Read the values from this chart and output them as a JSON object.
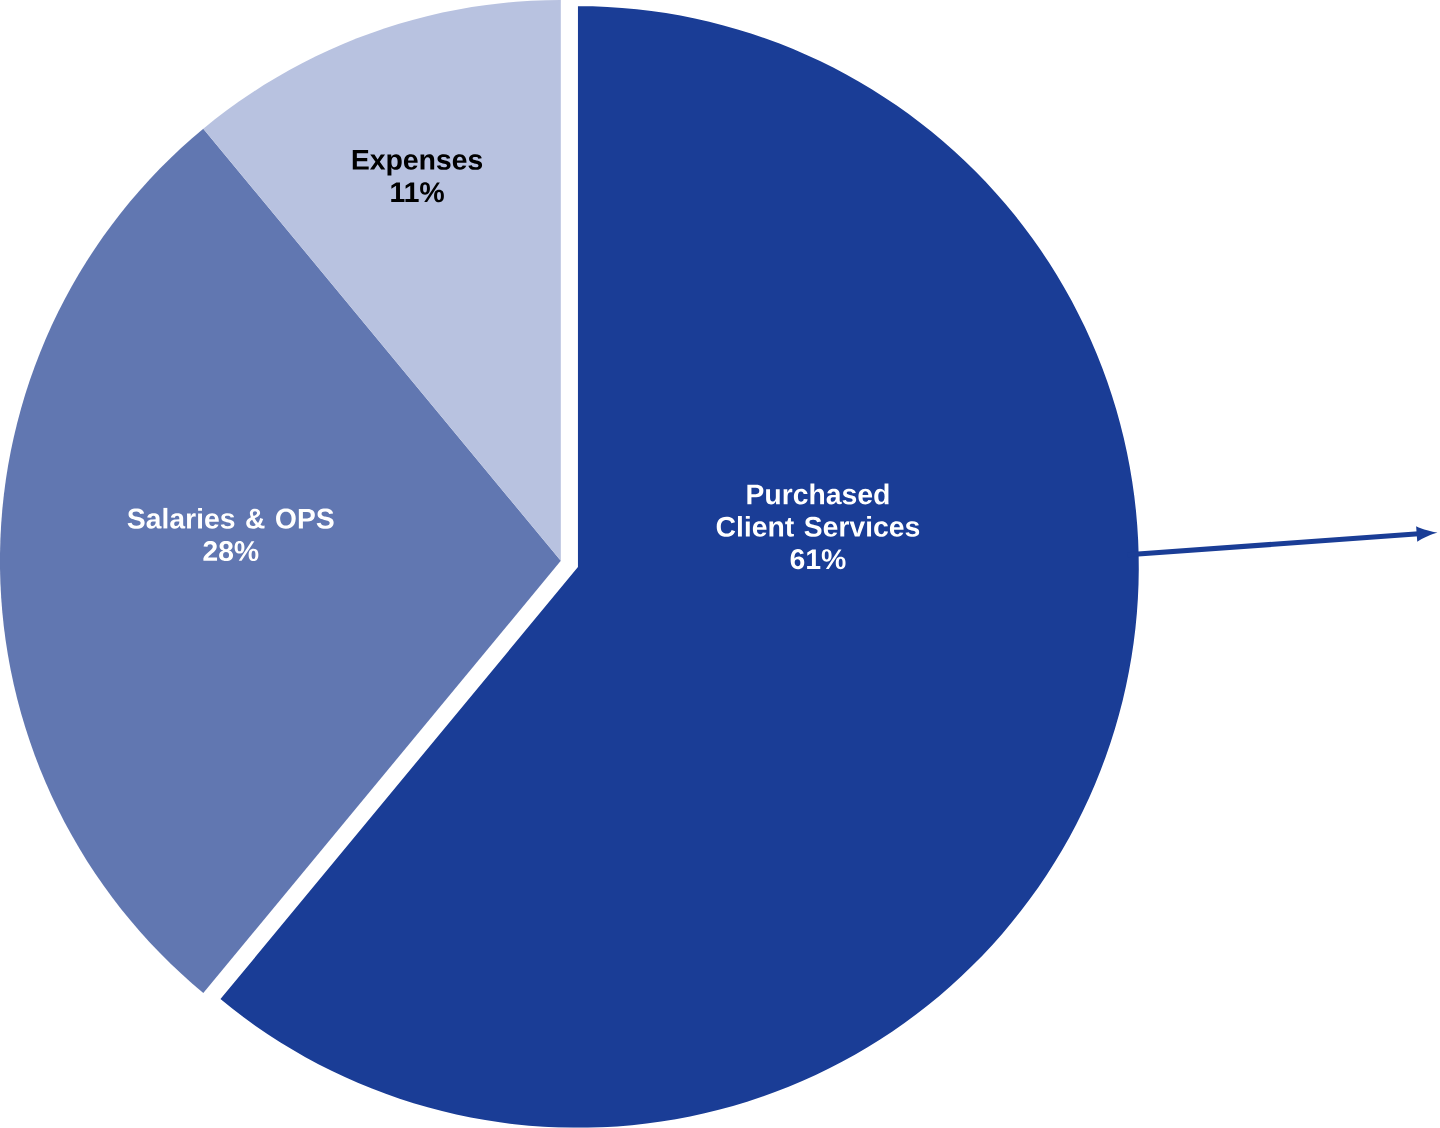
{
  "chart_data": {
    "type": "pie",
    "categories": [
      "Purchased Client Services",
      "Salaries & OPS",
      "Expenses"
    ],
    "values": [
      61,
      28,
      11
    ],
    "colors": [
      "#1a3d96",
      "#6177b1",
      "#b8c2e0"
    ],
    "value_labels": [
      "61%",
      "28%",
      "11%"
    ]
  }
}
